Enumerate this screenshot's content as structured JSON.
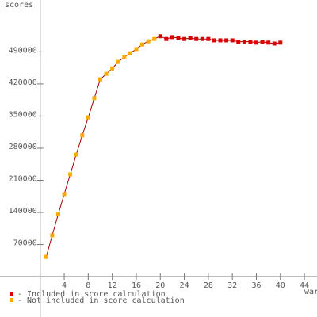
{
  "chart_data": {
    "type": "line",
    "y_label": "scores",
    "x_label": "war",
    "xlim": [
      -6.7,
      46.1
    ],
    "ylim": [
      -88000,
      603000
    ],
    "xticks": [
      4,
      8,
      12,
      16,
      20,
      24,
      28,
      32,
      36,
      40,
      44
    ],
    "yticks": [
      70000,
      140000,
      210000,
      280000,
      350000,
      420000,
      490000
    ],
    "line_color": "#a00000",
    "series": [
      {
        "name": "- Included in score calculation",
        "color": "#dd0000",
        "x": [
          20,
          21,
          22,
          23,
          24,
          25,
          26,
          27,
          28,
          29,
          30,
          31,
          32,
          33,
          34,
          35,
          36,
          37,
          38,
          39,
          40
        ],
        "values": [
          524000,
          518000,
          522000,
          520000,
          518000,
          520000,
          518000,
          518000,
          518000,
          515000,
          515000,
          515000,
          515000,
          512000,
          512000,
          512000,
          510000,
          512000,
          510000,
          508000,
          510000
        ]
      },
      {
        "name": "- Not included in score calculation",
        "color": "#ffaa00",
        "x": [
          1,
          2,
          3,
          4,
          5,
          6,
          7,
          8,
          9,
          10,
          11,
          12,
          13,
          14,
          15,
          16,
          17,
          18,
          19
        ],
        "values": [
          43000,
          90000,
          136000,
          180000,
          223000,
          266000,
          308000,
          347000,
          389000,
          430000,
          442000,
          454000,
          468000,
          479000,
          487000,
          496000,
          506000,
          513000,
          518000
        ]
      }
    ]
  }
}
